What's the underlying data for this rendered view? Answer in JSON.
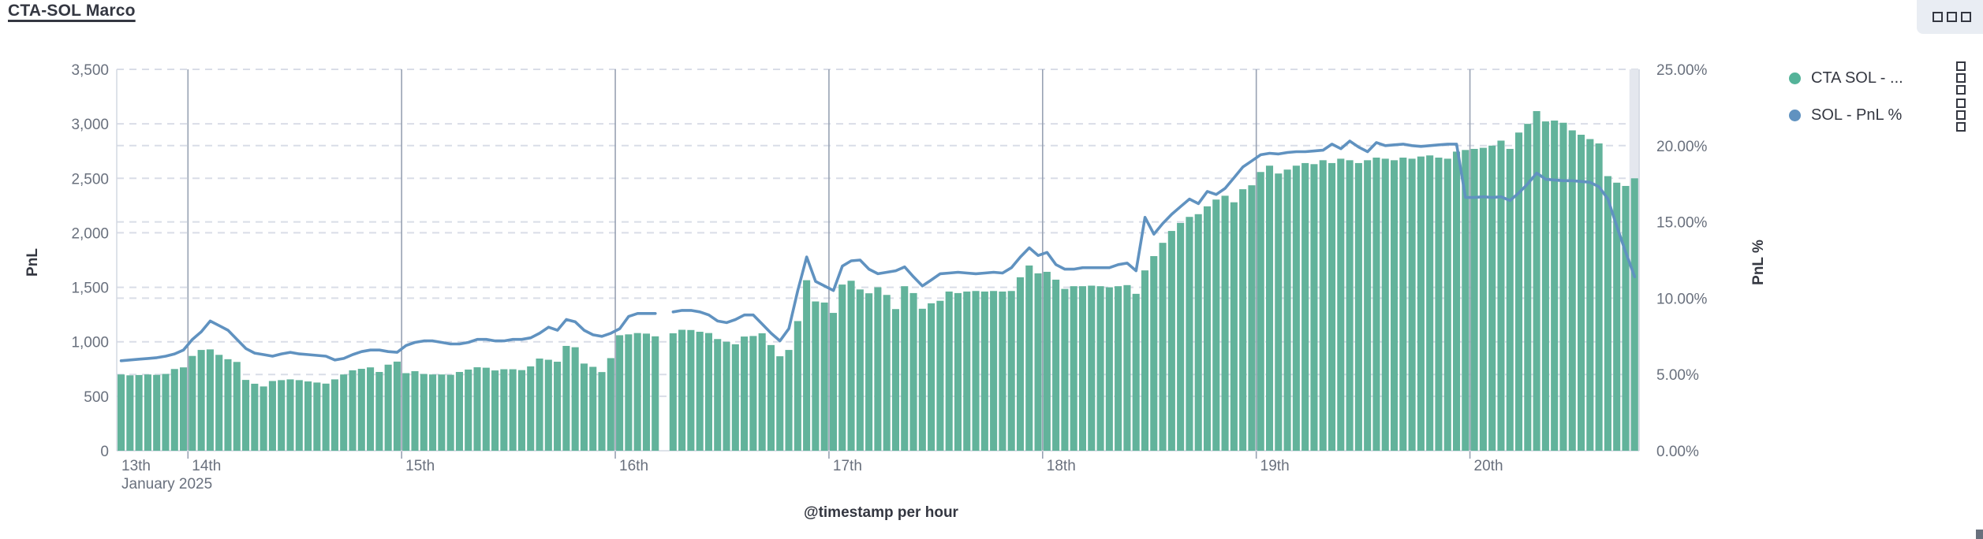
{
  "panel": {
    "title": "CTA-SOL Marco"
  },
  "toolbar": {
    "panel_options_icon": "boxes-horizontal"
  },
  "legend": {
    "position": "right",
    "items": [
      {
        "label": "CTA SOL - ...",
        "color": "#54B399",
        "action_icon": "boxes-vertical"
      },
      {
        "label": "SOL - PnL %",
        "color": "#6092C0",
        "action_icon": "boxes-vertical"
      }
    ]
  },
  "colors": {
    "bar": "#62B39B",
    "line": "#6092C0",
    "grid_dashed": "#D9DDE7",
    "grid_day": "#98A2B3",
    "plot_border": "#D3D8E2",
    "tick_text": "#69707D",
    "dark_text": "#343741",
    "hover_band": "#E4E7EE",
    "toolbar_bg": "#E9EDF3"
  },
  "chart_data": {
    "type": "bar+line",
    "title": "CTA-SOL Marco",
    "xlabel": "@timestamp per hour",
    "x_interval": "1 hour",
    "x_start": "January 13 2025 16:00",
    "x_end": "January 20 2025 18:00",
    "x_first_label": "13th",
    "x_context_label": "January 2025",
    "x_ticks": [
      {
        "label": "14th",
        "hour": 8
      },
      {
        "label": "15th",
        "hour": 32
      },
      {
        "label": "16th",
        "hour": 56
      },
      {
        "label": "17th",
        "hour": 80
      },
      {
        "label": "18th",
        "hour": 104
      },
      {
        "label": "19th",
        "hour": 128
      },
      {
        "label": "20th",
        "hour": 152
      }
    ],
    "left_axis": {
      "label": "PnL",
      "range": [
        0,
        3500
      ],
      "tick_values": [
        0,
        500,
        1000,
        1500,
        2000,
        2500,
        3000,
        3500
      ],
      "tick_labels": [
        "0",
        "500",
        "1,000",
        "1,500",
        "2,000",
        "2,500",
        "3,000",
        "3,500"
      ]
    },
    "right_axis": {
      "label": "PnL %",
      "range": [
        0,
        25
      ],
      "tick_values": [
        0,
        5,
        10,
        15,
        20,
        25
      ],
      "tick_labels": [
        "0.00%",
        "5.00%",
        "10.00%",
        "15.00%",
        "20.00%",
        "25.00%"
      ]
    },
    "grid": true,
    "legend_position": "right",
    "missing_data_hour": "January 16 2025 05:00",
    "hovered_last_bar": true,
    "series": [
      {
        "name": "CTA SOL - ...",
        "type": "bar",
        "axis": "left",
        "color": "#62B39B",
        "values": [
          700,
          692,
          695,
          700,
          696,
          705,
          750,
          765,
          870,
          925,
          930,
          880,
          840,
          815,
          650,
          615,
          590,
          640,
          648,
          655,
          648,
          636,
          626,
          616,
          655,
          700,
          738,
          752,
          765,
          723,
          790,
          818,
          712,
          730,
          704,
          700,
          700,
          697,
          723,
          745,
          766,
          762,
          737,
          748,
          748,
          740,
          774,
          846,
          835,
          817,
          962,
          950,
          800,
          770,
          722,
          850,
          1060,
          1068,
          1080,
          1075,
          1050,
          null,
          1078,
          1110,
          1108,
          1092,
          1080,
          1025,
          1000,
          977,
          1048,
          1053,
          1078,
          970,
          867,
          925,
          1190,
          1565,
          1370,
          1360,
          1265,
          1525,
          1560,
          1480,
          1445,
          1500,
          1430,
          1300,
          1510,
          1447,
          1303,
          1353,
          1376,
          1461,
          1447,
          1461,
          1466,
          1461,
          1466,
          1461,
          1466,
          1592,
          1700,
          1628,
          1642,
          1570,
          1485,
          1510,
          1510,
          1515,
          1510,
          1500,
          1510,
          1520,
          1440,
          1655,
          1786,
          1908,
          2017,
          2090,
          2146,
          2171,
          2243,
          2305,
          2340,
          2280,
          2400,
          2436,
          2558,
          2616,
          2544,
          2580,
          2616,
          2640,
          2630,
          2666,
          2640,
          2680,
          2666,
          2640,
          2666,
          2690,
          2680,
          2666,
          2690,
          2680,
          2700,
          2710,
          2690,
          2680,
          2745,
          2760,
          2770,
          2780,
          2800,
          2846,
          2770,
          2920,
          3000,
          3117,
          3022,
          3030,
          3010,
          2940,
          2900,
          2860,
          2820,
          2520,
          2460,
          2430,
          2500
        ]
      },
      {
        "name": "SOL - PnL %",
        "type": "line",
        "axis": "right",
        "color": "#6092C0",
        "values": [
          5.9,
          5.95,
          6.0,
          6.05,
          6.1,
          6.2,
          6.35,
          6.6,
          7.3,
          7.8,
          8.5,
          8.2,
          7.9,
          7.3,
          6.7,
          6.4,
          6.3,
          6.2,
          6.35,
          6.45,
          6.35,
          6.3,
          6.25,
          6.2,
          5.95,
          6.05,
          6.3,
          6.5,
          6.6,
          6.6,
          6.5,
          6.45,
          6.9,
          7.1,
          7.2,
          7.2,
          7.1,
          7.0,
          7.0,
          7.1,
          7.3,
          7.3,
          7.2,
          7.2,
          7.3,
          7.3,
          7.4,
          7.7,
          8.1,
          7.9,
          8.6,
          8.45,
          7.9,
          7.6,
          7.5,
          7.7,
          8.0,
          8.8,
          9.0,
          9.0,
          9.0,
          null,
          9.1,
          9.2,
          9.2,
          9.1,
          8.9,
          8.5,
          8.4,
          8.6,
          8.9,
          8.9,
          8.3,
          7.7,
          7.2,
          8.0,
          10.5,
          12.7,
          11.1,
          10.8,
          10.5,
          12.1,
          12.45,
          12.5,
          11.9,
          11.6,
          11.7,
          11.8,
          12.05,
          11.4,
          10.8,
          11.2,
          11.6,
          11.65,
          11.7,
          11.65,
          11.6,
          11.65,
          11.7,
          11.65,
          12.0,
          12.7,
          13.3,
          12.8,
          13.0,
          12.2,
          11.9,
          11.9,
          12.0,
          12.0,
          12.0,
          12.0,
          12.2,
          12.3,
          11.8,
          15.3,
          14.2,
          14.9,
          15.5,
          16.0,
          16.5,
          16.2,
          17.0,
          16.8,
          17.2,
          17.9,
          18.6,
          19.0,
          19.4,
          19.5,
          19.45,
          19.55,
          19.6,
          19.6,
          19.65,
          19.7,
          20.1,
          19.8,
          20.3,
          19.9,
          19.6,
          20.2,
          20.0,
          20.05,
          20.1,
          20.0,
          19.95,
          20.0,
          20.05,
          20.1,
          20.1,
          16.6,
          16.6,
          16.65,
          16.6,
          16.65,
          16.4,
          16.9,
          17.5,
          18.2,
          17.8,
          17.75,
          17.7,
          17.7,
          17.65,
          17.6,
          17.3,
          16.5,
          14.7,
          13.0,
          11.4
        ]
      }
    ]
  }
}
